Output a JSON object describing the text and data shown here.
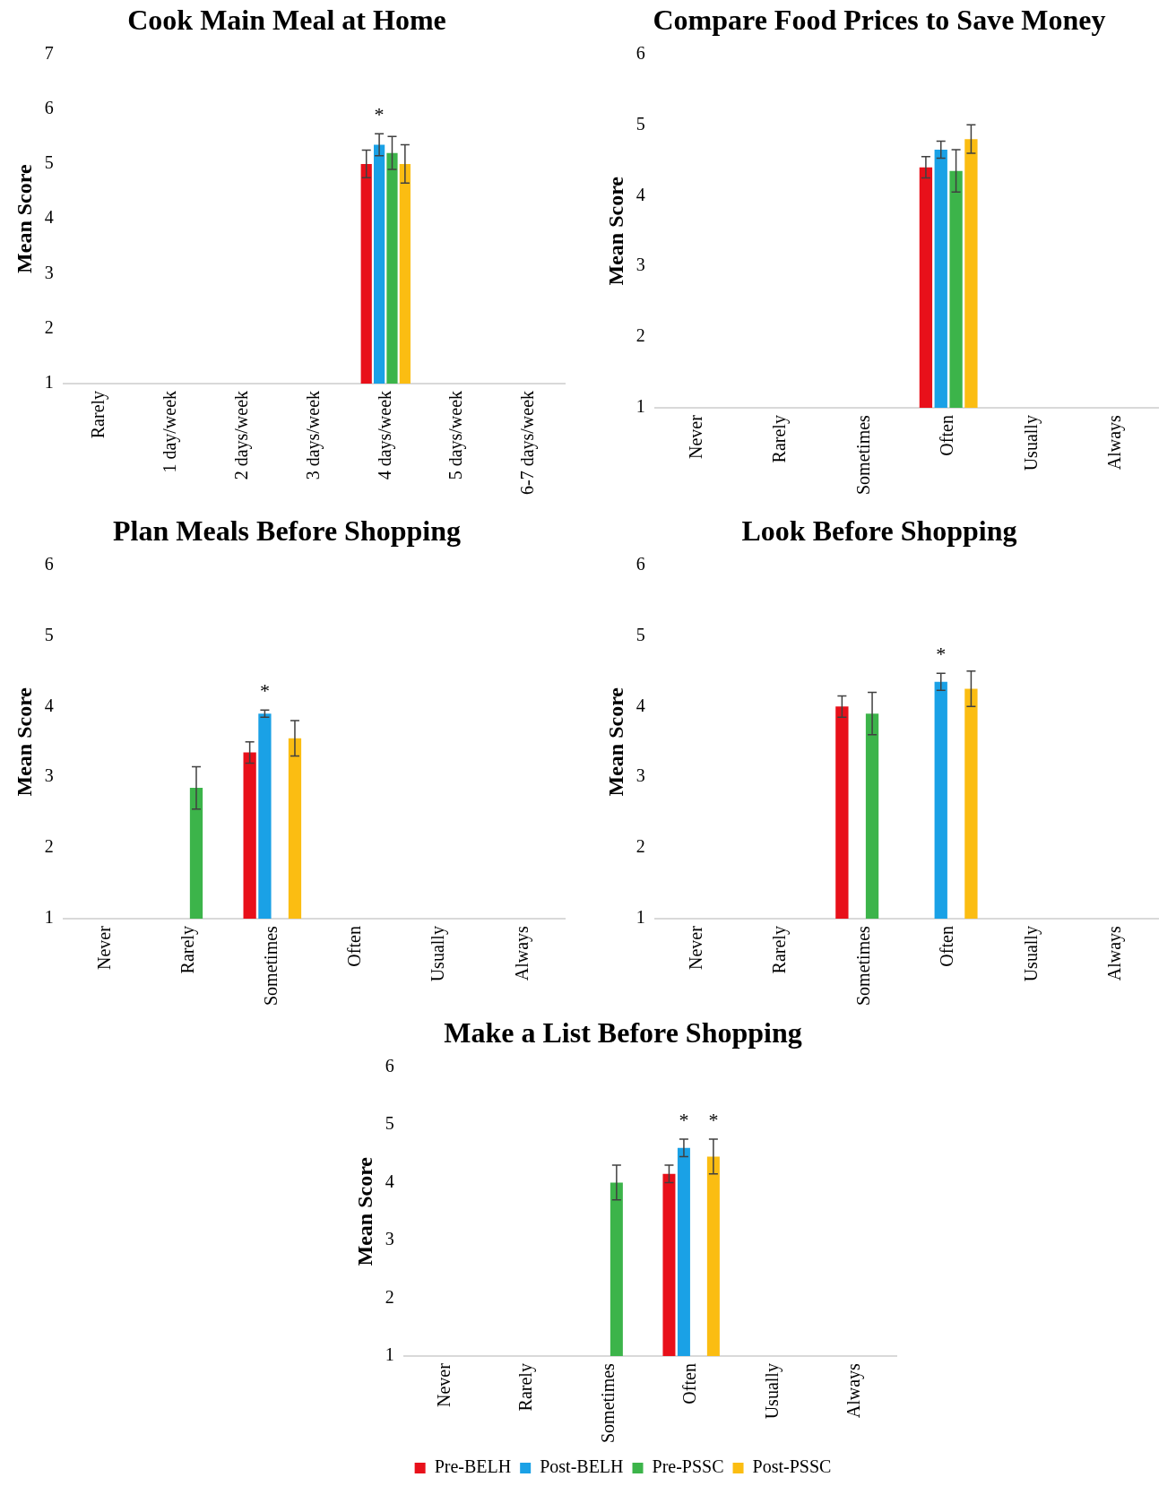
{
  "chart_data": [
    {
      "type": "bar",
      "title": "Cook Main Meal at Home",
      "ylabel": "Mean Score",
      "categories": [
        "Rarely",
        "1 day/week",
        "2 days/week",
        "3 days/week",
        "4 days/week",
        "5 days/week",
        "6-7 days/week"
      ],
      "series": [
        {
          "color": "#e8101a",
          "values": [
            null,
            null,
            null,
            null,
            5.0,
            null,
            null
          ],
          "errors": [
            null,
            null,
            null,
            null,
            0.25,
            null,
            null
          ]
        },
        {
          "color": "#1aa1e6",
          "values": [
            null,
            null,
            null,
            null,
            5.35,
            null,
            null
          ],
          "errors": [
            null,
            null,
            null,
            null,
            0.2,
            null,
            null
          ]
        },
        {
          "color": "#3cb44a",
          "values": [
            null,
            null,
            null,
            null,
            5.2,
            null,
            null
          ],
          "errors": [
            null,
            null,
            null,
            null,
            0.3,
            null,
            null
          ]
        },
        {
          "color": "#fbbd12",
          "values": [
            null,
            null,
            null,
            null,
            5.0,
            null,
            null
          ],
          "errors": [
            null,
            null,
            null,
            null,
            0.35,
            null,
            null
          ]
        }
      ],
      "ylim": [
        1,
        7
      ],
      "yticks": [
        1,
        2,
        3,
        4,
        5,
        6,
        7
      ],
      "annotations": [
        {
          "text": "*",
          "x": "4 days/week",
          "y": 5.35
        }
      ]
    },
    {
      "type": "bar",
      "title": "Compare Food Prices to Save Money",
      "ylabel": "Mean Score",
      "categories": [
        "Never",
        "Rarely",
        "Sometimes",
        "Often",
        "Usually",
        "Always"
      ],
      "series": [
        {
          "color": "#e8101a",
          "values": [
            null,
            null,
            null,
            4.4,
            null,
            null
          ],
          "errors": [
            null,
            null,
            null,
            0.15,
            null,
            null
          ]
        },
        {
          "color": "#1aa1e6",
          "values": [
            null,
            null,
            null,
            4.65,
            null,
            null
          ],
          "errors": [
            null,
            null,
            null,
            0.12,
            null,
            null
          ]
        },
        {
          "color": "#3cb44a",
          "values": [
            null,
            null,
            null,
            4.35,
            null,
            null
          ],
          "errors": [
            null,
            null,
            null,
            0.3,
            null,
            null
          ]
        },
        {
          "color": "#fbbd12",
          "values": [
            null,
            null,
            null,
            4.8,
            null,
            null
          ],
          "errors": [
            null,
            null,
            null,
            0.2,
            null,
            null
          ]
        }
      ],
      "ylim": [
        1,
        6
      ],
      "yticks": [
        1,
        2,
        3,
        4,
        5,
        6
      ]
    },
    {
      "type": "bar",
      "title": "Plan Meals Before Shopping",
      "ylabel": "Mean Score",
      "categories": [
        "Never",
        "Rarely",
        "Sometimes",
        "Often",
        "Usually",
        "Always"
      ],
      "series": [
        {
          "color": "#e8101a",
          "values": [
            null,
            null,
            3.35,
            null,
            null,
            null
          ],
          "errors": [
            null,
            null,
            0.15,
            null,
            null,
            null
          ]
        },
        {
          "color": "#1aa1e6",
          "values": [
            null,
            null,
            3.9,
            null,
            null,
            null
          ],
          "errors": [
            null,
            null,
            0.05,
            null,
            null,
            null
          ]
        },
        {
          "color": "#3cb44a",
          "values": [
            null,
            2.85,
            null,
            null,
            null,
            null
          ],
          "errors": [
            null,
            0.3,
            null,
            null,
            null,
            null
          ]
        },
        {
          "color": "#fbbd12",
          "values": [
            null,
            null,
            3.55,
            null,
            null,
            null
          ],
          "errors": [
            null,
            null,
            0.25,
            null,
            null,
            null
          ]
        }
      ],
      "ylim": [
        1,
        6
      ],
      "yticks": [
        1,
        2,
        3,
        4,
        5,
        6
      ],
      "annotations": [
        {
          "text": "*",
          "x": "Sometimes",
          "y": 3.9
        }
      ]
    },
    {
      "type": "bar",
      "title": "Look Before Shopping",
      "ylabel": "Mean Score",
      "categories": [
        "Never",
        "Rarely",
        "Sometimes",
        "Often",
        "Usually",
        "Always"
      ],
      "series": [
        {
          "color": "#e8101a",
          "values": [
            null,
            null,
            4.0,
            null,
            null,
            null
          ],
          "errors": [
            null,
            null,
            0.15,
            null,
            null,
            null
          ]
        },
        {
          "color": "#1aa1e6",
          "values": [
            null,
            null,
            null,
            4.35,
            null,
            null
          ],
          "errors": [
            null,
            null,
            null,
            0.12,
            null,
            null
          ]
        },
        {
          "color": "#3cb44a",
          "values": [
            null,
            null,
            3.9,
            null,
            null,
            null
          ],
          "errors": [
            null,
            null,
            0.3,
            null,
            null,
            null
          ]
        },
        {
          "color": "#fbbd12",
          "values": [
            null,
            null,
            null,
            4.25,
            null,
            null
          ],
          "errors": [
            null,
            null,
            null,
            0.25,
            null,
            null
          ]
        }
      ],
      "ylim": [
        1,
        6
      ],
      "yticks": [
        1,
        2,
        3,
        4,
        5,
        6
      ],
      "annotations": [
        {
          "text": "*",
          "x": "Often",
          "y": 4.35
        }
      ]
    },
    {
      "type": "bar",
      "title": "Make a List Before Shopping",
      "ylabel": "Mean Score",
      "categories": [
        "Never",
        "Rarely",
        "Sometimes",
        "Often",
        "Usually",
        "Always"
      ],
      "series": [
        {
          "name": "Pre-BELH",
          "color": "#e8101a",
          "values": [
            null,
            null,
            null,
            4.15,
            null,
            null
          ],
          "errors": [
            null,
            null,
            null,
            0.15,
            null,
            null
          ]
        },
        {
          "name": "Post-BELH",
          "color": "#1aa1e6",
          "values": [
            null,
            null,
            null,
            4.6,
            null,
            null
          ],
          "errors": [
            null,
            null,
            null,
            0.15,
            null,
            null
          ]
        },
        {
          "name": "Pre-PSSC",
          "color": "#3cb44a",
          "values": [
            null,
            null,
            4.0,
            null,
            null,
            null
          ],
          "errors": [
            null,
            null,
            0.3,
            null,
            null,
            null
          ]
        },
        {
          "name": "Post-PSSC",
          "color": "#fbbd12",
          "values": [
            null,
            null,
            null,
            4.45,
            null,
            null
          ],
          "errors": [
            null,
            null,
            null,
            0.3,
            null,
            null
          ]
        }
      ],
      "ylim": [
        1,
        6
      ],
      "yticks": [
        1,
        2,
        3,
        4,
        5,
        6
      ],
      "legend": "bottom",
      "annotations": [
        {
          "text": "*",
          "x": "Often",
          "y": 4.6
        },
        {
          "text": "*",
          "x": "Often",
          "y": 4.45
        }
      ]
    }
  ]
}
